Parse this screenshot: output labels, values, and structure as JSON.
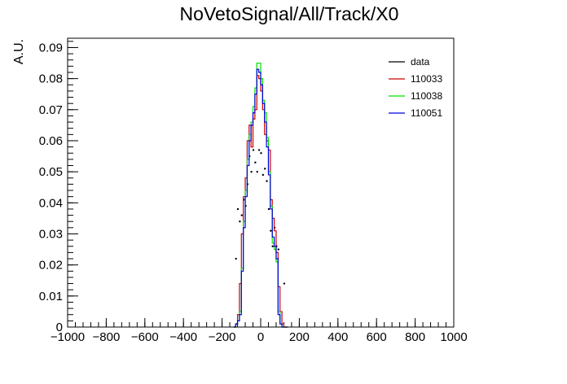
{
  "chart_data": {
    "type": "line",
    "title": "NoVetoSignal/All/Track/X0",
    "xlabel": "",
    "ylabel": "A.U.",
    "xlim": [
      -1000,
      1000
    ],
    "ylim": [
      0,
      0.093
    ],
    "x_major_ticks": [
      -1000,
      -800,
      -600,
      -400,
      -200,
      0,
      200,
      400,
      600,
      800,
      1000
    ],
    "x_tick_labels": [
      "−1000",
      "−800",
      "−600",
      "−400",
      "−200",
      "0",
      "200",
      "400",
      "600",
      "800",
      "1000"
    ],
    "y_major_ticks": [
      0,
      0.01,
      0.02,
      0.03,
      0.04,
      0.05,
      0.06,
      0.07,
      0.08,
      0.09
    ],
    "y_tick_labels": [
      "0",
      "0.01",
      "0.02",
      "0.03",
      "0.04",
      "0.05",
      "0.06",
      "0.07",
      "0.08",
      "0.09"
    ],
    "grid": false,
    "legend_position": "top-right",
    "bin_edges": [
      -140,
      -130,
      -120,
      -110,
      -100,
      -90,
      -80,
      -70,
      -60,
      -50,
      -40,
      -30,
      -20,
      -10,
      0,
      10,
      20,
      30,
      40,
      50,
      60,
      70,
      80,
      90,
      100,
      110,
      120,
      130,
      140
    ],
    "series": [
      {
        "name": "data",
        "style": "points",
        "color": "#000000",
        "points": [
          {
            "x": -128,
            "y": 0.022
          },
          {
            "x": -118,
            "y": 0.038
          },
          {
            "x": -108,
            "y": 0.034
          },
          {
            "x": -98,
            "y": 0.036
          },
          {
            "x": -88,
            "y": 0.041
          },
          {
            "x": -78,
            "y": 0.039
          },
          {
            "x": -68,
            "y": 0.046
          },
          {
            "x": -58,
            "y": 0.055
          },
          {
            "x": -48,
            "y": 0.05
          },
          {
            "x": -38,
            "y": 0.057
          },
          {
            "x": -28,
            "y": 0.053
          },
          {
            "x": -18,
            "y": 0.05
          },
          {
            "x": -8,
            "y": 0.057
          },
          {
            "x": 2,
            "y": 0.056
          },
          {
            "x": 12,
            "y": 0.049
          },
          {
            "x": 22,
            "y": 0.051
          },
          {
            "x": 32,
            "y": 0.047
          },
          {
            "x": 42,
            "y": 0.038
          },
          {
            "x": 52,
            "y": 0.031
          },
          {
            "x": 62,
            "y": 0.026
          },
          {
            "x": 72,
            "y": 0.032
          },
          {
            "x": 82,
            "y": 0.026
          },
          {
            "x": 92,
            "y": 0.025
          },
          {
            "x": 122,
            "y": 0.014
          },
          {
            "x": -122,
            "y": 0.001
          }
        ]
      },
      {
        "name": "110033",
        "style": "step",
        "color": "#cc0000",
        "values": [
          0,
          0.001,
          0.004,
          0.014,
          0.03,
          0.042,
          0.048,
          0.06,
          0.065,
          0.058,
          0.067,
          0.07,
          0.081,
          0.08,
          0.076,
          0.07,
          0.062,
          0.06,
          0.057,
          0.041,
          0.035,
          0.031,
          0.024,
          0.013,
          0.005,
          0.001,
          0,
          0
        ]
      },
      {
        "name": "110038",
        "style": "step",
        "color": "#00e000",
        "values": [
          0,
          0.001,
          0.002,
          0.005,
          0.019,
          0.034,
          0.044,
          0.054,
          0.062,
          0.066,
          0.071,
          0.077,
          0.085,
          0.085,
          0.08,
          0.073,
          0.069,
          0.061,
          0.05,
          0.039,
          0.027,
          0.025,
          0.021,
          0.005,
          0.001,
          0,
          0,
          0
        ]
      },
      {
        "name": "110051",
        "style": "step",
        "color": "#0000dd",
        "values": [
          0,
          0.001,
          0.002,
          0.004,
          0.018,
          0.032,
          0.042,
          0.052,
          0.06,
          0.065,
          0.069,
          0.075,
          0.083,
          0.082,
          0.078,
          0.072,
          0.066,
          0.058,
          0.049,
          0.038,
          0.029,
          0.026,
          0.022,
          0.004,
          0.001,
          0,
          0,
          0
        ]
      }
    ]
  }
}
